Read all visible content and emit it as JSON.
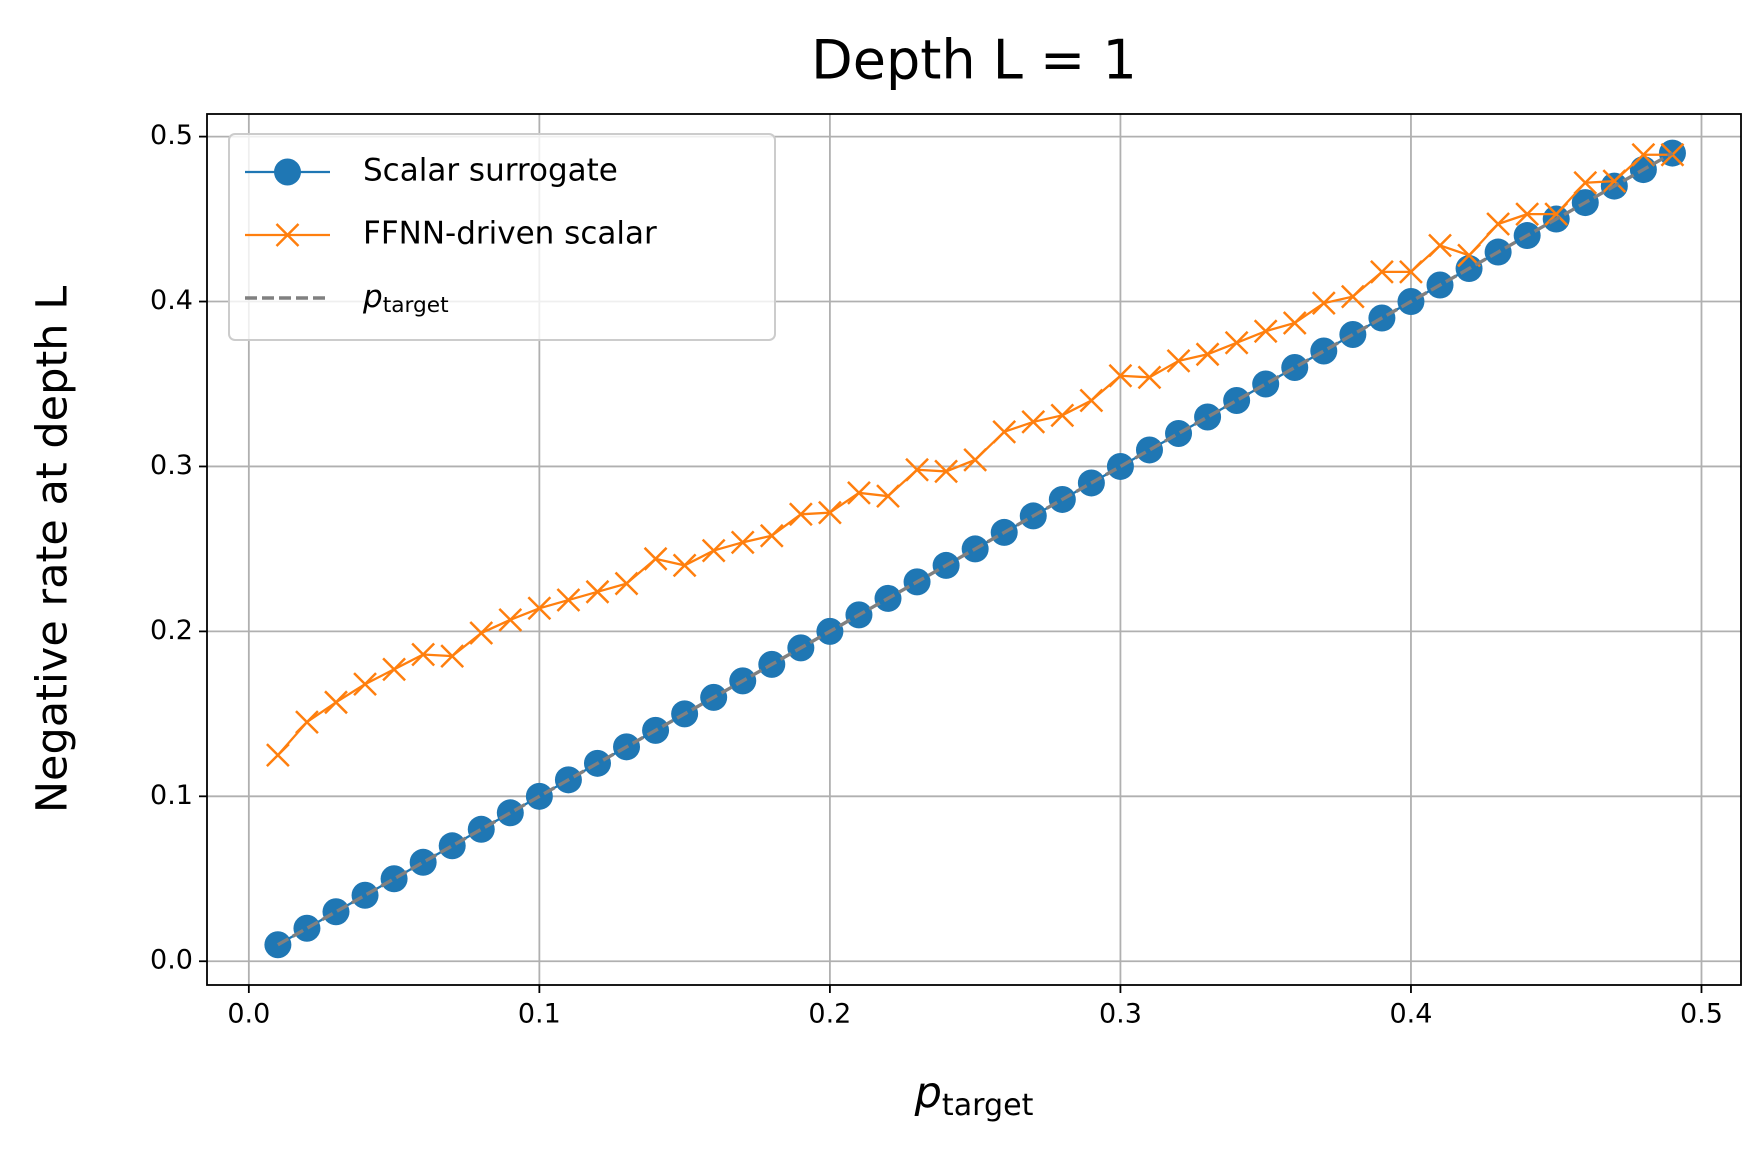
{
  "chart_data": {
    "type": "line",
    "title": "Depth L = 1",
    "xlabel": "p_target",
    "ylabel": "Negative rate at depth L",
    "x": [
      0.01,
      0.02,
      0.03,
      0.04,
      0.05,
      0.06,
      0.07,
      0.08,
      0.09,
      0.1,
      0.11,
      0.12,
      0.13,
      0.14,
      0.15,
      0.16,
      0.17,
      0.18,
      0.19,
      0.2,
      0.21,
      0.22,
      0.23,
      0.24,
      0.25,
      0.26,
      0.27,
      0.28,
      0.29,
      0.3,
      0.31,
      0.32,
      0.33,
      0.34,
      0.35,
      0.36,
      0.37,
      0.38,
      0.39,
      0.4,
      0.41,
      0.42,
      0.43,
      0.44,
      0.45,
      0.46,
      0.47,
      0.48,
      0.49
    ],
    "series": [
      {
        "name": "Scalar surrogate",
        "color": "#1f77b4",
        "marker": "o",
        "dash": false,
        "values": [
          0.01,
          0.02,
          0.03,
          0.04,
          0.05,
          0.06,
          0.07,
          0.08,
          0.09,
          0.1,
          0.11,
          0.12,
          0.13,
          0.14,
          0.15,
          0.16,
          0.17,
          0.18,
          0.19,
          0.2,
          0.21,
          0.22,
          0.23,
          0.24,
          0.25,
          0.26,
          0.27,
          0.28,
          0.29,
          0.3,
          0.31,
          0.32,
          0.33,
          0.34,
          0.35,
          0.36,
          0.37,
          0.38,
          0.39,
          0.4,
          0.41,
          0.42,
          0.43,
          0.44,
          0.45,
          0.46,
          0.47,
          0.48,
          0.49
        ]
      },
      {
        "name": "FFNN-driven scalar",
        "color": "#ff7f0e",
        "marker": "x",
        "dash": false,
        "values": [
          0.125,
          0.145,
          0.157,
          0.168,
          0.177,
          0.186,
          0.185,
          0.199,
          0.207,
          0.214,
          0.219,
          0.224,
          0.229,
          0.244,
          0.24,
          0.249,
          0.254,
          0.258,
          0.271,
          0.272,
          0.284,
          0.282,
          0.298,
          0.297,
          0.304,
          0.321,
          0.327,
          0.331,
          0.34,
          0.355,
          0.354,
          0.364,
          0.368,
          0.375,
          0.382,
          0.387,
          0.399,
          0.403,
          0.418,
          0.418,
          0.434,
          0.428,
          0.447,
          0.453,
          0.453,
          0.472,
          0.473,
          0.489,
          0.489
        ]
      },
      {
        "name": "p_target",
        "color": "#808080",
        "marker": null,
        "dash": true,
        "values": [
          0.01,
          0.02,
          0.03,
          0.04,
          0.05,
          0.06,
          0.07,
          0.08,
          0.09,
          0.1,
          0.11,
          0.12,
          0.13,
          0.14,
          0.15,
          0.16,
          0.17,
          0.18,
          0.19,
          0.2,
          0.21,
          0.22,
          0.23,
          0.24,
          0.25,
          0.26,
          0.27,
          0.28,
          0.29,
          0.3,
          0.31,
          0.32,
          0.33,
          0.34,
          0.35,
          0.36,
          0.37,
          0.38,
          0.39,
          0.4,
          0.41,
          0.42,
          0.43,
          0.44,
          0.45,
          0.46,
          0.47,
          0.48,
          0.49
        ]
      }
    ],
    "xlim": [
      -0.0144,
      0.5136
    ],
    "ylim": [
      -0.0144,
      0.5137
    ],
    "xticks": [
      {
        "value": 0,
        "label": "0.0"
      },
      0.1,
      0.2,
      0.3,
      0.4,
      0.5
    ],
    "yticks": [
      {
        "value": 0,
        "label": "0.0"
      },
      0.1,
      0.2,
      0.3,
      0.4,
      0.5
    ],
    "grid": true,
    "legend": "upper left"
  }
}
